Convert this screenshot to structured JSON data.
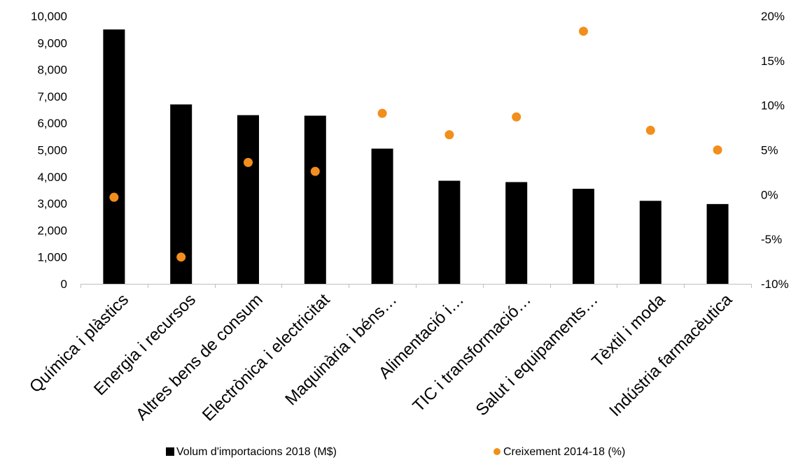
{
  "colors": {
    "bars": "#000000",
    "points": "#f28e1c",
    "axis": "#bfbfbf",
    "text": "#000000"
  },
  "chart_data": {
    "type": "bar",
    "categories": [
      "Química i plàstics",
      "Energia i recursos",
      "Altres bens de consum",
      "Electrònica i electricitat",
      "Maquinària i béns…",
      "Alimentació i…",
      "TIC i transformació…",
      "Salut i equipaments…",
      "Tèxtil i moda",
      "Indústria farmacèutica"
    ],
    "series": [
      {
        "name": "Volum d'importacions 2018 (M$)",
        "type": "bar",
        "axis": "left",
        "values": [
          9500,
          6700,
          6300,
          6280,
          5050,
          3850,
          3800,
          3550,
          3100,
          2980
        ]
      },
      {
        "name": "Creixement 2014-18 (%)",
        "type": "scatter",
        "axis": "right",
        "values": [
          -0.3,
          -7.0,
          3.6,
          2.6,
          9.1,
          6.7,
          8.7,
          18.3,
          7.2,
          5.0
        ]
      }
    ],
    "y_left": {
      "min": 0,
      "max": 10000,
      "ticks": [
        "0",
        "1,000",
        "2,000",
        "3,000",
        "4,000",
        "5,000",
        "6,000",
        "7,000",
        "8,000",
        "9,000",
        "10,000"
      ]
    },
    "y_right": {
      "min": -10,
      "max": 20,
      "ticks": [
        "-10%",
        "-5%",
        "0%",
        "5%",
        "10%",
        "15%",
        "20%"
      ]
    },
    "grid": false,
    "legend_position": "bottom",
    "title": "",
    "xlabel": "",
    "ylabel": ""
  }
}
